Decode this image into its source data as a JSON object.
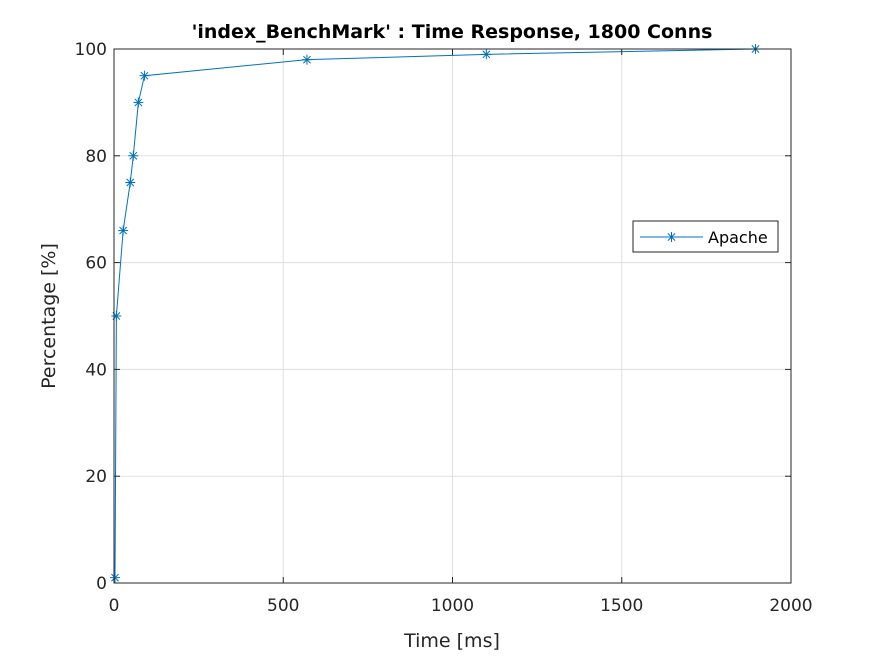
{
  "chart_data": {
    "type": "line",
    "title": "'index_BenchMark' : Time Response, 1800 Conns",
    "xlabel": "Time [ms]",
    "ylabel": "Percentage [%]",
    "xlim": [
      0,
      2000
    ],
    "ylim": [
      0,
      100
    ],
    "xticks": [
      0,
      500,
      1000,
      1500,
      2000
    ],
    "yticks": [
      0,
      20,
      40,
      60,
      80,
      100
    ],
    "grid": true,
    "legend_position": "right",
    "series": [
      {
        "name": "Apache",
        "color": "#0072BD",
        "marker": "asterisk",
        "x": [
          3,
          7,
          27,
          48,
          57,
          72,
          90,
          570,
          1100,
          1895
        ],
        "y": [
          1,
          50,
          66,
          75,
          80,
          90,
          95,
          98,
          99,
          100
        ]
      }
    ]
  }
}
